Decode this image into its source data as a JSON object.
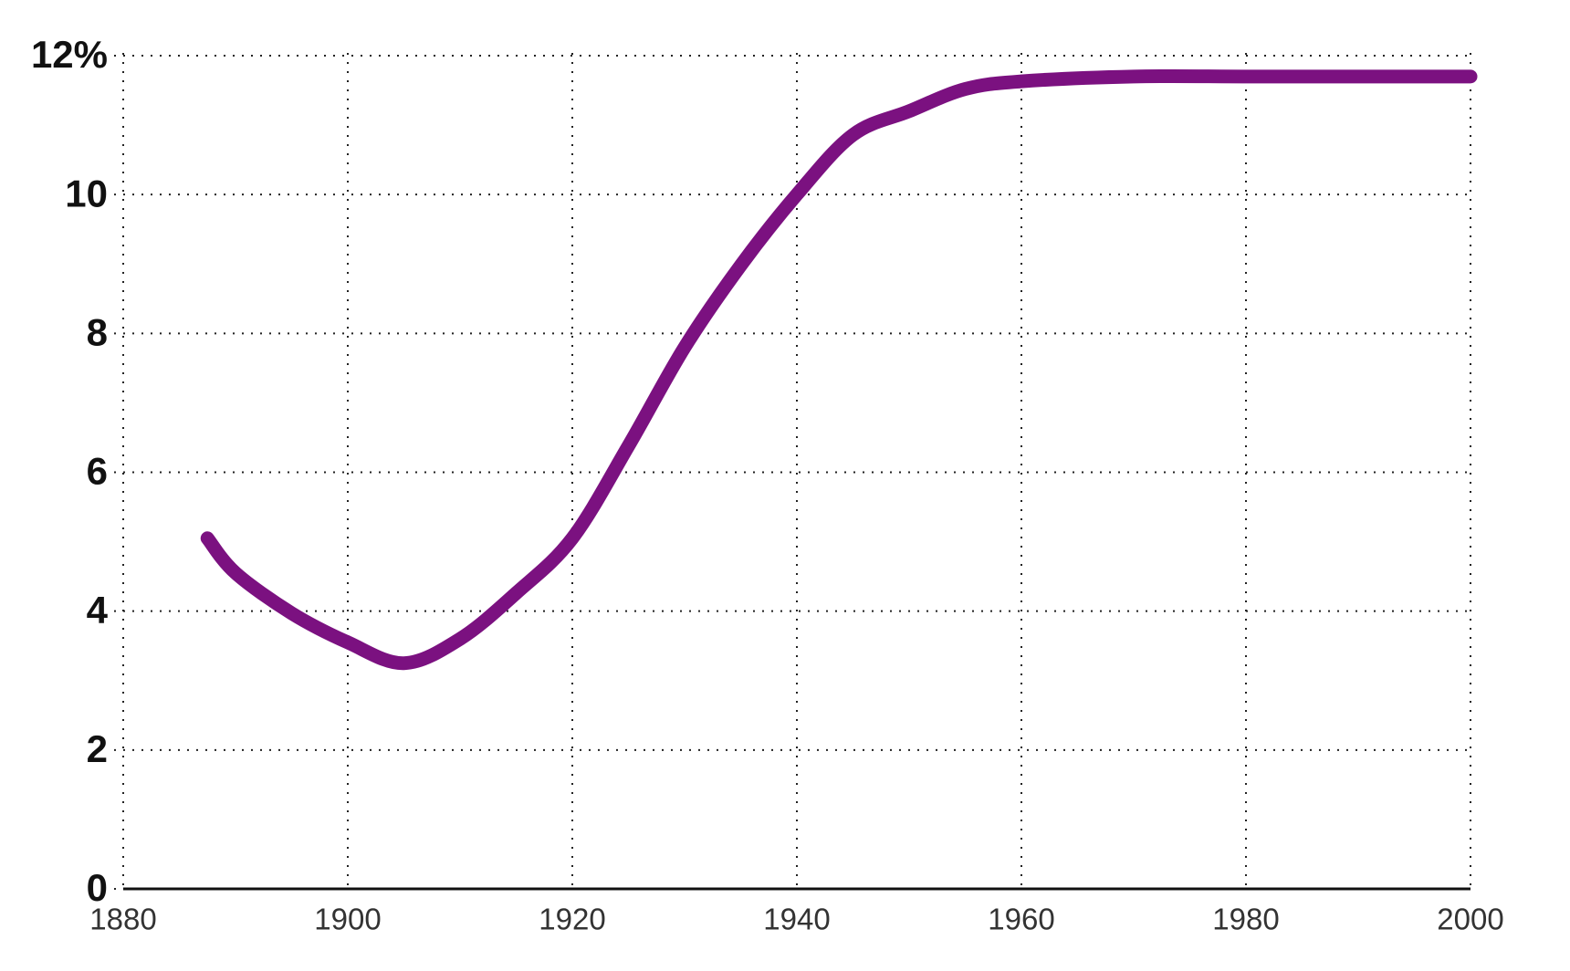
{
  "chart_data": {
    "type": "line",
    "x": [
      1887.5,
      1890,
      1895,
      1900,
      1905,
      1910,
      1915,
      1920,
      1925,
      1930,
      1935,
      1940,
      1945,
      1950,
      1955,
      1960,
      1970,
      1980,
      1990,
      2000
    ],
    "series": [
      {
        "color": "#7b1180",
        "values": [
          5.05,
          4.55,
          3.97,
          3.55,
          3.25,
          3.6,
          4.26,
          5.05,
          6.38,
          7.8,
          8.98,
          10.0,
          10.86,
          11.2,
          11.52,
          11.63,
          11.7,
          11.7,
          11.7,
          11.7
        ]
      }
    ],
    "xlim": [
      1880,
      2000
    ],
    "xticks": [
      1880,
      1900,
      1920,
      1940,
      1960,
      1980,
      2000
    ],
    "ylim": [
      0,
      12
    ],
    "yticks": [
      0,
      2,
      4,
      6,
      8,
      10,
      {
        "value": 12,
        "label": "12%"
      }
    ],
    "grid": true
  }
}
